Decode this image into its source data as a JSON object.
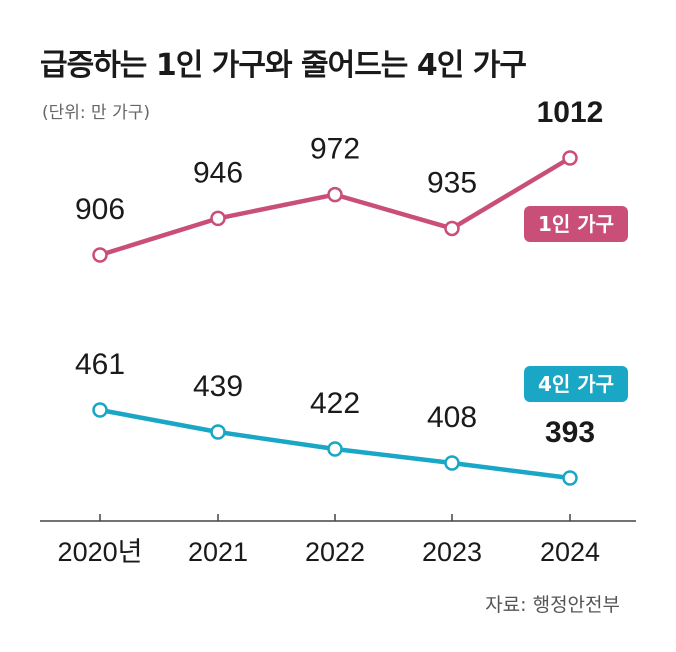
{
  "chart_data": {
    "type": "line",
    "title": "급증하는 1인 가구와 줄어드는 4인 가구",
    "unit_note": "(단위: 만 가구)",
    "source": "자료: 행정안전부",
    "categories": [
      "2020년",
      "2021",
      "2022",
      "2023",
      "2024"
    ],
    "series": [
      {
        "name": "1인 가구",
        "values": [
          906,
          946,
          972,
          935,
          1012
        ],
        "color": "#c94f79"
      },
      {
        "name": "4인 가구",
        "values": [
          461,
          439,
          422,
          408,
          393
        ],
        "color": "#1aa7c6"
      }
    ],
    "grid": false,
    "legend": "inline labels at right end of each line"
  }
}
